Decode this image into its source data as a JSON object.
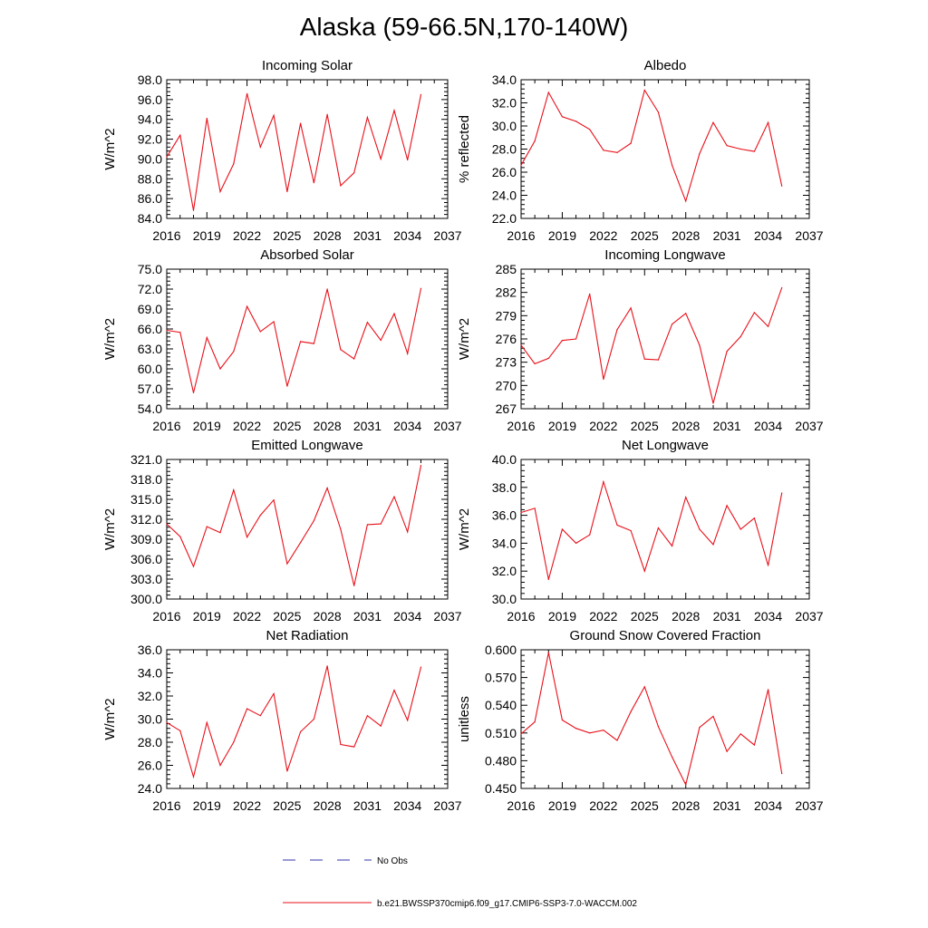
{
  "title": "Alaska (59-66.5N,170-140W)",
  "legend": [
    {
      "label": "No Obs",
      "color": "#3333aa",
      "style": "dashed"
    },
    {
      "label": "b.e21.BWSSP370cmip6.f09_g17.CMIP6-SSP3-7.0-WACCM.002",
      "color": "#e8101a",
      "style": "solid"
    }
  ],
  "chart_data": [
    {
      "type": "line",
      "title": "Incoming Solar",
      "ylabel": "W/m^2",
      "xlim": [
        2016,
        2037
      ],
      "xticks": [
        "2016",
        "2019",
        "2022",
        "2025",
        "2028",
        "2031",
        "2034",
        "2037"
      ],
      "ylim": [
        84,
        98
      ],
      "yticks": [
        "84.0",
        "86.0",
        "88.0",
        "90.0",
        "92.0",
        "94.0",
        "96.0",
        "98.0"
      ],
      "series": [
        {
          "name": "b.e21.BWSSP370cmip6.f09_g17.CMIP6-SSP3-7.0-WACCM.002",
          "x": [
            2016,
            2017,
            2018,
            2019,
            2020,
            2021,
            2022,
            2023,
            2024,
            2025,
            2026,
            2027,
            2028,
            2029,
            2030,
            2031,
            2032,
            2033,
            2034,
            2035
          ],
          "values": [
            90.2,
            92.4,
            84.8,
            94.1,
            86.7,
            89.5,
            96.6,
            91.2,
            94.4,
            86.7,
            93.6,
            87.6,
            94.5,
            87.3,
            88.6,
            94.2,
            90.0,
            94.9,
            89.9,
            96.5
          ]
        }
      ]
    },
    {
      "type": "line",
      "title": "Albedo",
      "ylabel": "% reflected",
      "xlim": [
        2016,
        2037
      ],
      "xticks": [
        "2016",
        "2019",
        "2022",
        "2025",
        "2028",
        "2031",
        "2034",
        "2037"
      ],
      "ylim": [
        22,
        34
      ],
      "yticks": [
        "22.0",
        "24.0",
        "26.0",
        "28.0",
        "30.0",
        "32.0",
        "34.0"
      ],
      "series": [
        {
          "name": "b.e21.BWSSP370cmip6.f09_g17.CMIP6-SSP3-7.0-WACCM.002",
          "x": [
            2016,
            2017,
            2018,
            2019,
            2020,
            2021,
            2022,
            2023,
            2024,
            2025,
            2026,
            2027,
            2028,
            2029,
            2030,
            2031,
            2032,
            2033,
            2034,
            2035
          ],
          "values": [
            26.6,
            28.7,
            32.9,
            30.8,
            30.4,
            29.7,
            27.9,
            27.7,
            28.5,
            33.1,
            31.2,
            26.6,
            23.5,
            27.6,
            30.3,
            28.3,
            28.0,
            27.8,
            30.3,
            24.8
          ]
        }
      ]
    },
    {
      "type": "line",
      "title": "Absorbed Solar",
      "ylabel": "W/m^2",
      "xlim": [
        2016,
        2037
      ],
      "xticks": [
        "2016",
        "2019",
        "2022",
        "2025",
        "2028",
        "2031",
        "2034",
        "2037"
      ],
      "ylim": [
        54,
        75
      ],
      "yticks": [
        "54.0",
        "57.0",
        "60.0",
        "63.0",
        "66.0",
        "69.0",
        "72.0",
        "75.0"
      ],
      "series": [
        {
          "name": "b.e21.BWSSP370cmip6.f09_g17.CMIP6-SSP3-7.0-WACCM.002",
          "x": [
            2016,
            2017,
            2018,
            2019,
            2020,
            2021,
            2022,
            2023,
            2024,
            2025,
            2026,
            2027,
            2028,
            2029,
            2030,
            2031,
            2032,
            2033,
            2034,
            2035
          ],
          "values": [
            65.8,
            65.5,
            56.4,
            64.7,
            60.0,
            62.6,
            69.4,
            65.6,
            67.1,
            57.4,
            64.1,
            63.8,
            72.0,
            62.9,
            61.5,
            67.0,
            64.3,
            68.3,
            62.3,
            72.1
          ]
        }
      ]
    },
    {
      "type": "line",
      "title": "Incoming Longwave",
      "ylabel": "W/m^2",
      "xlim": [
        2016,
        2037
      ],
      "xticks": [
        "2016",
        "2019",
        "2022",
        "2025",
        "2028",
        "2031",
        "2034",
        "2037"
      ],
      "ylim": [
        267,
        285
      ],
      "yticks": [
        "267",
        "270",
        "273",
        "276",
        "279",
        "282",
        "285"
      ],
      "series": [
        {
          "name": "b.e21.BWSSP370cmip6.f09_g17.CMIP6-SSP3-7.0-WACCM.002",
          "x": [
            2016,
            2017,
            2018,
            2019,
            2020,
            2021,
            2022,
            2023,
            2024,
            2025,
            2026,
            2027,
            2028,
            2029,
            2030,
            2031,
            2032,
            2033,
            2034,
            2035
          ],
          "values": [
            275.2,
            272.8,
            273.5,
            275.8,
            276.0,
            281.8,
            270.8,
            277.2,
            280.0,
            273.4,
            273.3,
            277.9,
            279.3,
            275.2,
            267.7,
            274.4,
            276.3,
            279.4,
            277.6,
            282.6
          ]
        }
      ]
    },
    {
      "type": "line",
      "title": "Emitted Longwave",
      "ylabel": "W/m^2",
      "xlim": [
        2016,
        2037
      ],
      "xticks": [
        "2016",
        "2019",
        "2022",
        "2025",
        "2028",
        "2031",
        "2034",
        "2037"
      ],
      "ylim": [
        300,
        321
      ],
      "yticks": [
        "300.0",
        "303.0",
        "306.0",
        "309.0",
        "312.0",
        "315.0",
        "318.0",
        "321.0"
      ],
      "series": [
        {
          "name": "b.e21.BWSSP370cmip6.f09_g17.CMIP6-SSP3-7.0-WACCM.002",
          "x": [
            2016,
            2017,
            2018,
            2019,
            2020,
            2021,
            2022,
            2023,
            2024,
            2025,
            2026,
            2027,
            2028,
            2029,
            2030,
            2031,
            2032,
            2033,
            2034,
            2035
          ],
          "values": [
            311.3,
            309.4,
            304.9,
            310.9,
            310.0,
            316.4,
            309.3,
            312.6,
            314.9,
            305.3,
            308.5,
            311.8,
            316.7,
            310.5,
            302.0,
            311.2,
            311.3,
            315.4,
            310.1,
            320.1
          ]
        }
      ]
    },
    {
      "type": "line",
      "title": "Net Longwave",
      "ylabel": "W/m^2",
      "xlim": [
        2016,
        2037
      ],
      "xticks": [
        "2016",
        "2019",
        "2022",
        "2025",
        "2028",
        "2031",
        "2034",
        "2037"
      ],
      "ylim": [
        30,
        40
      ],
      "yticks": [
        "30.0",
        "32.0",
        "34.0",
        "36.0",
        "38.0",
        "40.0"
      ],
      "series": [
        {
          "name": "b.e21.BWSSP370cmip6.f09_g17.CMIP6-SSP3-7.0-WACCM.002",
          "x": [
            2016,
            2017,
            2018,
            2019,
            2020,
            2021,
            2022,
            2023,
            2024,
            2025,
            2026,
            2027,
            2028,
            2029,
            2030,
            2031,
            2032,
            2033,
            2034,
            2035
          ],
          "values": [
            36.2,
            36.5,
            31.4,
            35.0,
            34.0,
            34.6,
            38.4,
            35.3,
            34.9,
            32.0,
            35.1,
            33.8,
            37.3,
            35.0,
            33.9,
            36.7,
            35.0,
            35.8,
            32.4,
            37.6
          ]
        }
      ]
    },
    {
      "type": "line",
      "title": "Net Radiation",
      "ylabel": "W/m^2",
      "xlim": [
        2016,
        2037
      ],
      "xticks": [
        "2016",
        "2019",
        "2022",
        "2025",
        "2028",
        "2031",
        "2034",
        "2037"
      ],
      "ylim": [
        24,
        36
      ],
      "yticks": [
        "24.0",
        "26.0",
        "28.0",
        "30.0",
        "32.0",
        "34.0",
        "36.0"
      ],
      "series": [
        {
          "name": "b.e21.BWSSP370cmip6.f09_g17.CMIP6-SSP3-7.0-WACCM.002",
          "x": [
            2016,
            2017,
            2018,
            2019,
            2020,
            2021,
            2022,
            2023,
            2024,
            2025,
            2026,
            2027,
            2028,
            2029,
            2030,
            2031,
            2032,
            2033,
            2034,
            2035
          ],
          "values": [
            29.7,
            29.0,
            25.0,
            29.7,
            26.0,
            28.0,
            30.9,
            30.3,
            32.2,
            25.5,
            28.9,
            30.0,
            34.6,
            27.8,
            27.6,
            30.3,
            29.4,
            32.5,
            29.9,
            34.5
          ]
        }
      ]
    },
    {
      "type": "line",
      "title": "Ground Snow Covered Fraction",
      "ylabel": "unitless",
      "xlim": [
        2016,
        2037
      ],
      "xticks": [
        "2016",
        "2019",
        "2022",
        "2025",
        "2028",
        "2031",
        "2034",
        "2037"
      ],
      "ylim": [
        0.45,
        0.6
      ],
      "yticks": [
        "0.450",
        "0.480",
        "0.510",
        "0.540",
        "0.570",
        "0.600"
      ],
      "series": [
        {
          "name": "b.e21.BWSSP370cmip6.f09_g17.CMIP6-SSP3-7.0-WACCM.002",
          "x": [
            2016,
            2017,
            2018,
            2019,
            2020,
            2021,
            2022,
            2023,
            2024,
            2025,
            2026,
            2027,
            2028,
            2029,
            2030,
            2031,
            2032,
            2033,
            2034,
            2035
          ],
          "values": [
            0.509,
            0.522,
            0.597,
            0.524,
            0.515,
            0.51,
            0.513,
            0.502,
            0.533,
            0.56,
            0.517,
            0.484,
            0.454,
            0.516,
            0.528,
            0.49,
            0.509,
            0.497,
            0.557,
            0.466
          ]
        }
      ]
    }
  ]
}
